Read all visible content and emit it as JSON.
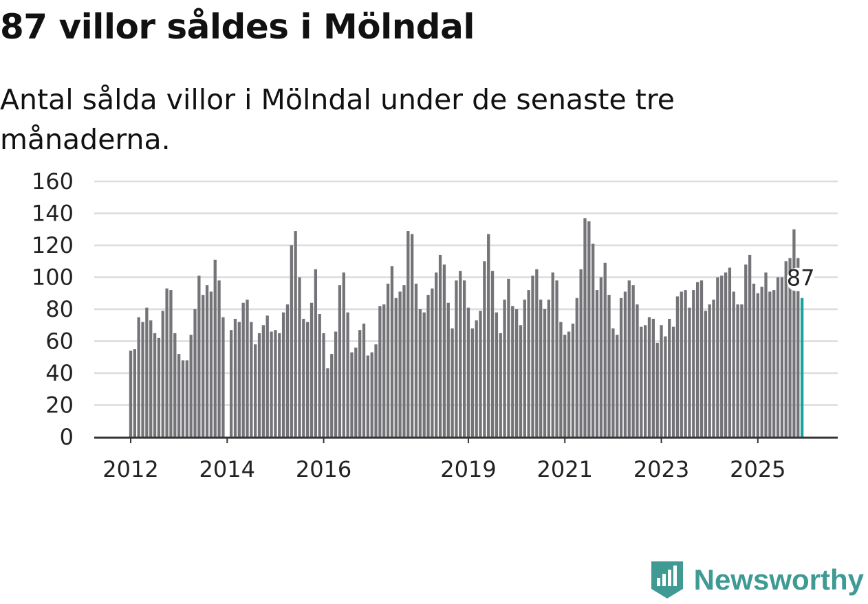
{
  "header": {
    "title": "87 villor såldes i Mölndal",
    "subtitle": "Antal sålda villor i Mölndal under de senaste tre månaderna."
  },
  "brand": {
    "name": "Newsworthy",
    "color": "#3f9a93"
  },
  "colors": {
    "bar": "#747478",
    "highlight": "#1aa39a",
    "grid": "#dcdcdc",
    "axis": "#333333"
  },
  "chart_data": {
    "type": "bar",
    "title": "87 villor såldes i Mölndal",
    "subtitle": "Antal sålda villor i Mölndal under de senaste tre månaderna.",
    "xlabel": "",
    "ylabel": "",
    "ylim": [
      0,
      160
    ],
    "y_ticks": [
      0,
      20,
      40,
      60,
      80,
      100,
      120,
      140,
      160
    ],
    "x_ticks": [
      {
        "label": "2012",
        "index": 0
      },
      {
        "label": "2014",
        "index": 24
      },
      {
        "label": "2016",
        "index": 48
      },
      {
        "label": "2019",
        "index": 84
      },
      {
        "label": "2021",
        "index": 108
      },
      {
        "label": "2023",
        "index": 132
      },
      {
        "label": "2025",
        "index": 156
      }
    ],
    "start": "2012-01",
    "frequency": "monthly (gaps where data is missing)",
    "values": [
      54,
      55,
      75,
      72,
      81,
      73,
      65,
      62,
      79,
      93,
      92,
      65,
      52,
      48,
      48,
      64,
      80,
      101,
      89,
      95,
      91,
      111,
      98,
      75,
      null,
      67,
      74,
      72,
      84,
      86,
      72,
      58,
      65,
      70,
      76,
      66,
      67,
      65,
      78,
      83,
      120,
      129,
      100,
      74,
      72,
      84,
      105,
      77,
      65,
      43,
      52,
      66,
      95,
      103,
      78,
      53,
      56,
      67,
      71,
      51,
      53,
      58,
      82,
      83,
      96,
      107,
      87,
      91,
      95,
      129,
      127,
      96,
      80,
      78,
      89,
      93,
      103,
      114,
      108,
      84,
      68,
      98,
      104,
      98,
      81,
      68,
      73,
      79,
      110,
      127,
      104,
      78,
      65,
      86,
      99,
      82,
      80,
      70,
      86,
      92,
      101,
      105,
      86,
      80,
      86,
      103,
      98,
      72,
      64,
      66,
      71,
      87,
      105,
      137,
      135,
      121,
      92,
      100,
      109,
      89,
      68,
      64,
      87,
      91,
      98,
      95,
      83,
      69,
      70,
      75,
      74,
      59,
      70,
      63,
      74,
      69,
      88,
      91,
      92,
      81,
      92,
      97,
      98,
      79,
      83,
      86,
      100,
      101,
      103,
      106,
      91,
      83,
      83,
      108,
      114,
      96,
      90,
      94,
      103,
      91,
      92,
      100,
      100,
      110,
      112,
      130,
      112,
      87
    ],
    "highlight_last": true,
    "annotation": {
      "label": "87",
      "index": 167
    }
  }
}
